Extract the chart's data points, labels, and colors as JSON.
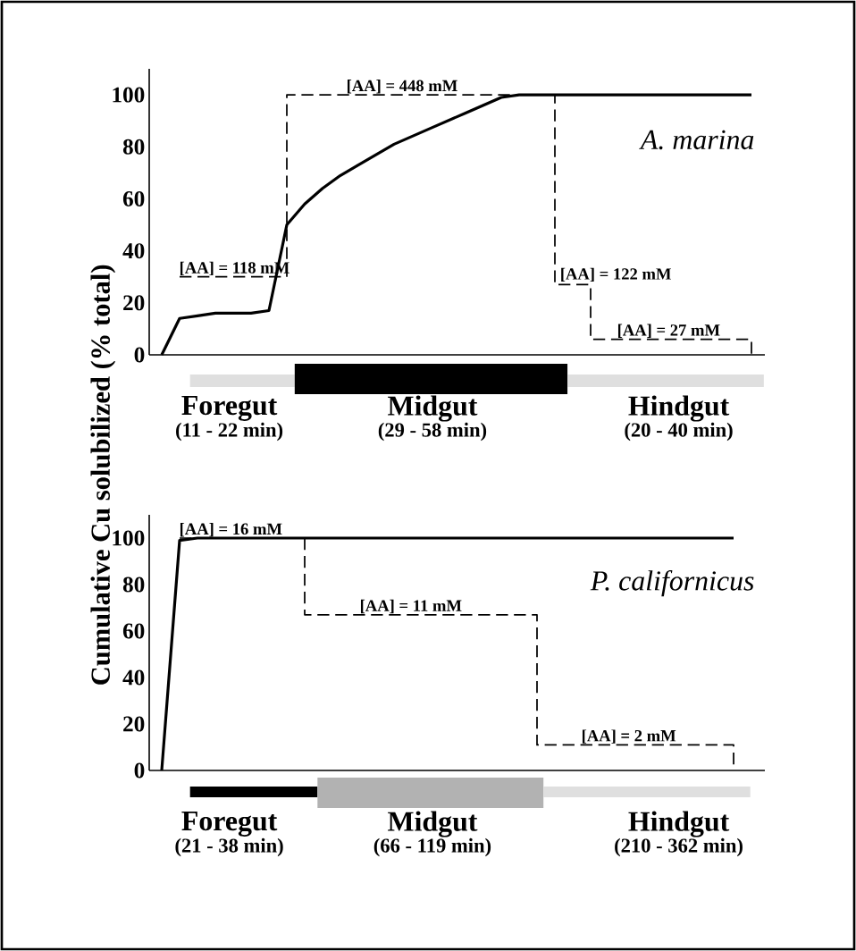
{
  "chart_data": [
    {
      "type": "line",
      "title": "A. marina",
      "ylabel": "Cumulative Cu solubilized (% total)",
      "categories": [
        null,
        null,
        null,
        null,
        null,
        null,
        null,
        null,
        null,
        null,
        null,
        null,
        null,
        null,
        null,
        null,
        null,
        null,
        null,
        null,
        null,
        null,
        null,
        null,
        null,
        null,
        null,
        null,
        null,
        null,
        null,
        null,
        null,
        null
      ],
      "series": [
        {
          "color": "#000000",
          "line_style": "solid",
          "values": [
            0,
            14,
            15,
            16,
            16,
            16,
            17,
            50,
            58,
            64,
            69,
            73,
            77,
            81,
            84,
            87,
            90,
            93,
            96,
            99,
            100,
            100,
            100,
            100,
            100,
            100,
            100,
            100,
            100,
            100,
            100,
            100,
            100,
            100
          ]
        },
        {
          "type": "step",
          "color": "#000000",
          "line_style": "dashed",
          "values": [
            null,
            30,
            30,
            30,
            30,
            30,
            30,
            100,
            100,
            100,
            100,
            100,
            100,
            100,
            100,
            100,
            100,
            100,
            100,
            100,
            100,
            100,
            27,
            27,
            6,
            6,
            6,
            6,
            6,
            6,
            6,
            6,
            6,
            0
          ]
        }
      ],
      "ylim": [
        0,
        110
      ],
      "yticks": [
        0,
        20,
        40,
        60,
        80,
        100
      ],
      "tick_labels": "y",
      "annotations": [
        "Foregut",
        "(11 - 22 min)",
        "Midgut",
        "(29 - 58 min)",
        "Hindgut",
        "(20 - 40 min)",
        {
          "text": "[AA] = 118 mM",
          "y": 30
        },
        {
          "text": "[AA] = 448 mM",
          "y": 100
        },
        "[AA] = 122 mM",
        {
          "text": "[AA] = 27 mM",
          "y": 6
        }
      ]
    },
    {
      "type": "line",
      "title": "P. californicus",
      "categories": [
        null,
        null,
        null,
        null,
        null,
        null,
        null,
        null,
        null,
        null,
        null,
        null,
        null,
        null,
        null,
        null,
        null,
        null,
        null,
        null,
        null,
        null,
        null,
        null,
        null,
        null,
        null,
        null,
        null,
        null,
        null,
        null,
        null,
        null
      ],
      "series": [
        {
          "color": "#000000",
          "line_style": "solid",
          "values": [
            0,
            99,
            100,
            100,
            100,
            100,
            100,
            100,
            100,
            100,
            100,
            100,
            100,
            100,
            100,
            100,
            100,
            100,
            100,
            100,
            100,
            100,
            100,
            100,
            100,
            100,
            100,
            100,
            100,
            100,
            100,
            100,
            100,
            null
          ]
        },
        {
          "type": "step",
          "color": "#000000",
          "line_style": "dashed",
          "values": [
            null,
            100,
            100,
            100,
            100,
            100,
            100,
            100,
            67,
            67,
            67,
            67,
            67,
            67,
            67,
            67,
            67,
            67,
            67,
            67,
            67,
            11,
            11,
            11,
            11,
            11,
            11,
            11,
            11,
            11,
            11,
            11,
            0,
            null
          ]
        }
      ],
      "ylim": [
        0,
        110
      ],
      "yticks": [
        0,
        20,
        40,
        60,
        80,
        100
      ],
      "tick_labels": "y",
      "annotations": [
        "Foregut",
        "(21 - 38 min)",
        "Midgut",
        "(66 - 119 min)",
        "Hindgut",
        "(210 - 362 min)",
        {
          "text": "[AA] = 16 mM",
          "y": 100
        },
        {
          "text": "[AA] = 11 mM",
          "y": 67
        },
        {
          "text": "[AA] = 2 mM",
          "y": 11
        }
      ]
    }
  ]
}
